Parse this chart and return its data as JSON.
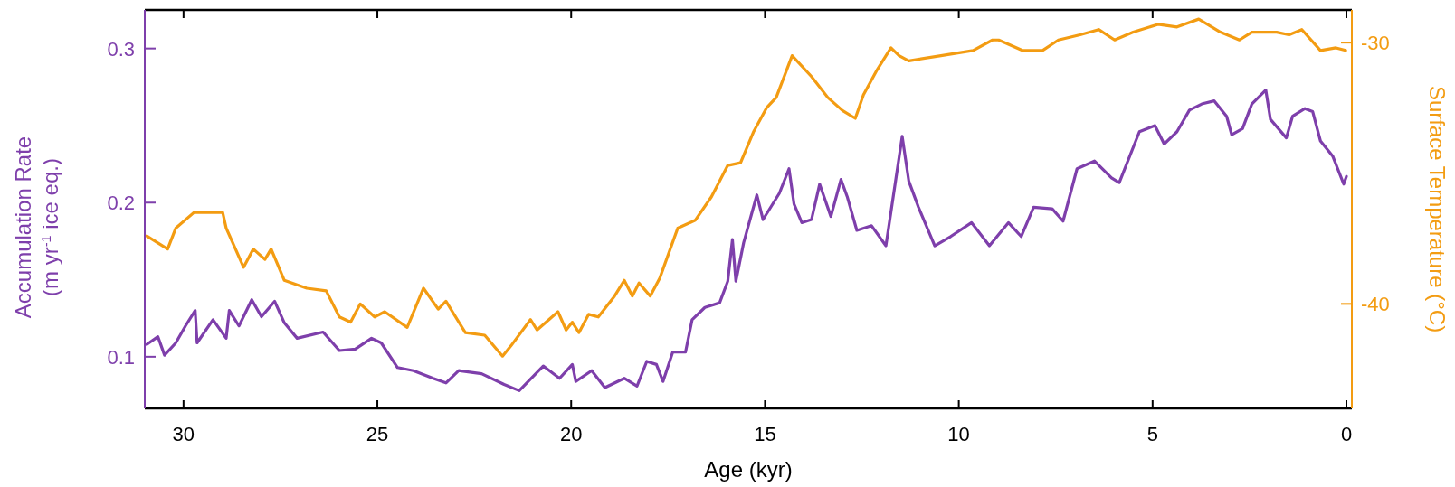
{
  "chart_data": {
    "type": "line",
    "xlabel": "Age (kyr)",
    "ylabel": "Accumulation Rate\n(m yr$^{-1}$ ice eq.)",
    "y2label": "Surface Temperature (°C)",
    "xlim": [
      31,
      -0.14
    ],
    "xticks": [
      30,
      25,
      20,
      15,
      10,
      5,
      0
    ],
    "ylim": [
      0.0665,
      0.325
    ],
    "yticks": [
      0.1,
      0.2,
      0.3
    ],
    "y2lim": [
      -44,
      -28.75
    ],
    "y2ticks": [
      -40,
      -30
    ],
    "grid": false,
    "marker": "none",
    "line_style": "solid",
    "series": [
      {
        "axis": "y2",
        "color": "#f39c12",
        "x": [
          30.95,
          30.41,
          30.2,
          29.73,
          29.4,
          28.99,
          28.9,
          28.45,
          28.2,
          27.9,
          27.74,
          27.4,
          26.82,
          26.32,
          25.98,
          25.69,
          25.44,
          25.07,
          24.81,
          24.23,
          23.81,
          23.43,
          23.23,
          22.73,
          22.23,
          21.77,
          21.55,
          21.05,
          20.88,
          20.34,
          20.13,
          19.97,
          19.8,
          19.55,
          19.3,
          18.88,
          18.63,
          18.42,
          18.25,
          17.96,
          17.71,
          17.25,
          16.8,
          16.38,
          15.96,
          15.63,
          15.29,
          14.96,
          14.71,
          14.3,
          13.8,
          13.38,
          13.0,
          12.67,
          12.46,
          12.13,
          11.75,
          11.54,
          11.29,
          10.46,
          9.63,
          9.13,
          8.97,
          8.36,
          7.84,
          7.43,
          6.87,
          6.39,
          5.98,
          5.5,
          4.86,
          4.37,
          3.81,
          3.25,
          2.76,
          2.44,
          1.8,
          1.48,
          1.15,
          0.67,
          0.27,
          0.02
        ],
        "values": [
          -37.4,
          -37.9,
          -37.1,
          -36.5,
          -36.5,
          -36.5,
          -37.1,
          -38.6,
          -37.9,
          -38.3,
          -37.9,
          -39.1,
          -39.4,
          -39.5,
          -40.5,
          -40.7,
          -40.0,
          -40.5,
          -40.3,
          -40.9,
          -39.4,
          -40.2,
          -39.9,
          -41.1,
          -41.2,
          -42.0,
          -41.6,
          -40.6,
          -41.0,
          -40.3,
          -41.0,
          -40.7,
          -41.1,
          -40.4,
          -40.5,
          -39.7,
          -39.1,
          -39.7,
          -39.2,
          -39.7,
          -39.0,
          -37.1,
          -36.8,
          -35.9,
          -34.7,
          -34.6,
          -33.4,
          -32.5,
          -32.1,
          -30.5,
          -31.3,
          -32.1,
          -32.6,
          -32.9,
          -32.0,
          -31.1,
          -30.2,
          -30.5,
          -30.7,
          -30.5,
          -30.3,
          -29.9,
          -29.9,
          -30.3,
          -30.3,
          -29.9,
          -29.7,
          -29.5,
          -29.9,
          -29.6,
          -29.3,
          -29.4,
          -29.1,
          -29.6,
          -29.9,
          -29.6,
          -29.6,
          -29.7,
          -29.5,
          -30.3,
          -30.2,
          -30.3
        ]
      },
      {
        "color": "#7e3fab",
        "x": [
          30.95,
          30.66,
          30.49,
          30.2,
          29.95,
          29.7,
          29.65,
          29.24,
          28.9,
          28.82,
          28.57,
          28.24,
          27.99,
          27.65,
          27.4,
          27.07,
          26.4,
          25.98,
          25.57,
          25.15,
          24.9,
          24.48,
          24.07,
          23.56,
          23.23,
          22.9,
          22.31,
          21.73,
          21.34,
          20.72,
          20.3,
          19.97,
          19.88,
          19.47,
          19.13,
          18.63,
          18.3,
          18.05,
          17.8,
          17.63,
          17.38,
          17.05,
          16.88,
          16.55,
          16.17,
          15.96,
          15.84,
          15.75,
          15.55,
          15.21,
          15.05,
          14.63,
          14.38,
          14.25,
          14.05,
          13.8,
          13.59,
          13.3,
          13.04,
          12.88,
          12.63,
          12.25,
          11.88,
          11.46,
          11.29,
          11.04,
          10.62,
          10.21,
          9.67,
          9.21,
          8.72,
          8.39,
          8.07,
          7.59,
          7.31,
          6.95,
          6.5,
          6.06,
          5.86,
          5.34,
          4.94,
          4.7,
          4.37,
          4.05,
          3.73,
          3.41,
          3.09,
          2.96,
          2.68,
          2.44,
          2.08,
          1.96,
          1.55,
          1.39,
          1.07,
          0.87,
          0.67,
          0.35,
          0.07,
          0.0
        ],
        "values": [
          0.108,
          0.113,
          0.101,
          0.109,
          0.12,
          0.13,
          0.109,
          0.124,
          0.112,
          0.13,
          0.12,
          0.137,
          0.126,
          0.136,
          0.122,
          0.112,
          0.116,
          0.104,
          0.105,
          0.112,
          0.109,
          0.093,
          0.091,
          0.086,
          0.083,
          0.091,
          0.089,
          0.082,
          0.078,
          0.094,
          0.086,
          0.095,
          0.084,
          0.091,
          0.08,
          0.086,
          0.081,
          0.097,
          0.095,
          0.084,
          0.103,
          0.103,
          0.124,
          0.132,
          0.135,
          0.149,
          0.176,
          0.149,
          0.174,
          0.205,
          0.189,
          0.206,
          0.222,
          0.199,
          0.187,
          0.189,
          0.212,
          0.191,
          0.215,
          0.204,
          0.182,
          0.185,
          0.172,
          0.243,
          0.214,
          0.197,
          0.172,
          0.178,
          0.187,
          0.172,
          0.187,
          0.178,
          0.197,
          0.196,
          0.188,
          0.222,
          0.227,
          0.216,
          0.213,
          0.246,
          0.25,
          0.238,
          0.246,
          0.26,
          0.264,
          0.266,
          0.256,
          0.244,
          0.248,
          0.264,
          0.273,
          0.254,
          0.242,
          0.256,
          0.261,
          0.259,
          0.24,
          0.23,
          0.212,
          0.217
        ]
      }
    ]
  }
}
